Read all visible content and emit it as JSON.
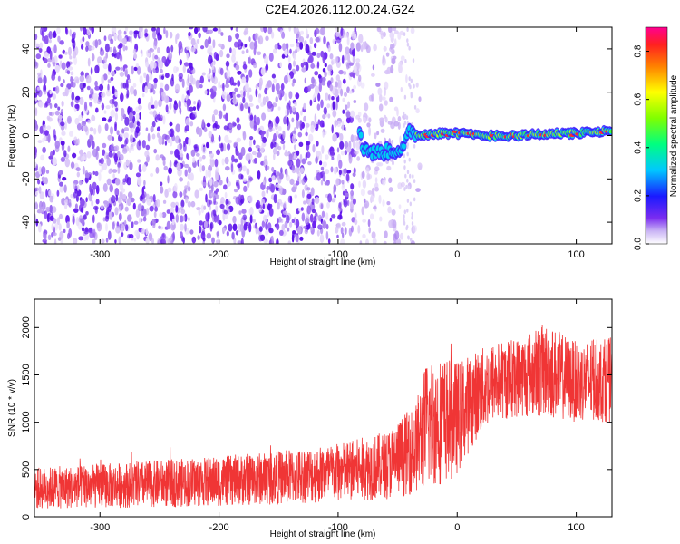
{
  "title": "C2E4.2026.112.00.24.G24",
  "chart_data": [
    {
      "type": "heatmap",
      "xlabel": "Height of straight line (km)",
      "ylabel": "Frequency (Hz)",
      "xlim": [
        -355,
        130
      ],
      "ylim": [
        -50,
        50
      ],
      "xticks": [
        -300,
        -200,
        -100,
        0,
        100
      ],
      "yticks": [
        -40,
        -20,
        0,
        20,
        40
      ],
      "colorbar": {
        "label": "Normalized spectral amplitude",
        "range": [
          0,
          0.9
        ],
        "ticks": [
          0.0,
          0.2,
          0.4,
          0.6,
          0.8
        ]
      },
      "signal_track": [
        {
          "x": -80,
          "y": -5
        },
        {
          "x": -70,
          "y": -8
        },
        {
          "x": -55,
          "y": -7
        },
        {
          "x": -45,
          "y": -6
        },
        {
          "x": -40,
          "y": 2
        },
        {
          "x": -30,
          "y": 0
        },
        {
          "x": -20,
          "y": 1
        },
        {
          "x": 0,
          "y": 1
        },
        {
          "x": 20,
          "y": 0
        },
        {
          "x": 50,
          "y": 0
        },
        {
          "x": 80,
          "y": 1
        },
        {
          "x": 100,
          "y": 1
        },
        {
          "x": 130,
          "y": 2
        }
      ],
      "grid": false
    },
    {
      "type": "line",
      "xlabel": "Height of straight line (km)",
      "ylabel": "SNR (10 * v/v)",
      "xlim": [
        -355,
        130
      ],
      "ylim": [
        0,
        2300
      ],
      "xticks": [
        -300,
        -200,
        -100,
        0,
        100
      ],
      "yticks": [
        0,
        500,
        1000,
        1500,
        2000
      ],
      "color": "#f03535",
      "envelope": [
        {
          "x": -355,
          "lo": 80,
          "hi": 520
        },
        {
          "x": -300,
          "lo": 90,
          "hi": 560
        },
        {
          "x": -250,
          "lo": 100,
          "hi": 600
        },
        {
          "x": -200,
          "lo": 110,
          "hi": 640
        },
        {
          "x": -150,
          "lo": 130,
          "hi": 700
        },
        {
          "x": -100,
          "lo": 150,
          "hi": 780
        },
        {
          "x": -60,
          "lo": 180,
          "hi": 900
        },
        {
          "x": -35,
          "lo": 250,
          "hi": 1200
        },
        {
          "x": -25,
          "lo": 300,
          "hi": 1700
        },
        {
          "x": -10,
          "lo": 350,
          "hi": 1700
        },
        {
          "x": 0,
          "lo": 450,
          "hi": 1650
        },
        {
          "x": 15,
          "lo": 800,
          "hi": 1750
        },
        {
          "x": 30,
          "lo": 1000,
          "hi": 1850
        },
        {
          "x": 50,
          "lo": 1050,
          "hi": 1900
        },
        {
          "x": 75,
          "lo": 1050,
          "hi": 2050
        },
        {
          "x": 100,
          "lo": 1000,
          "hi": 1850
        },
        {
          "x": 130,
          "lo": 1000,
          "hi": 1900
        }
      ],
      "grid": false
    }
  ]
}
